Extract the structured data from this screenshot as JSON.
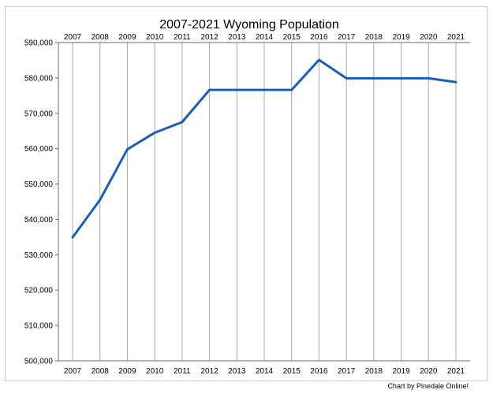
{
  "chart_data": {
    "type": "line",
    "title": "2007-2021 Wyoming Population",
    "credit": "Chart by Pinedale Online!",
    "xlabel": "",
    "ylabel": "",
    "x": [
      "2007",
      "2008",
      "2009",
      "2010",
      "2011",
      "2012",
      "2013",
      "2014",
      "2015",
      "2016",
      "2017",
      "2018",
      "2019",
      "2020",
      "2021"
    ],
    "series": [
      {
        "values": [
          534900,
          545500,
          559800,
          564500,
          567500,
          576600,
          576600,
          576600,
          576600,
          585100,
          579900,
          579900,
          579900,
          579900,
          578800
        ]
      }
    ],
    "ylim": [
      500000,
      590000
    ],
    "yticks": [
      500000,
      510000,
      520000,
      530000,
      540000,
      550000,
      560000,
      570000,
      580000,
      590000
    ],
    "ytick_labels": [
      "500,000",
      "510,000",
      "520,000",
      "530,000",
      "540,000",
      "550,000",
      "560,000",
      "570,000",
      "580,000",
      "590,000"
    ],
    "grid": "vertical",
    "x_tick_labels_top": true,
    "x_tick_labels_bottom": true,
    "colors": {
      "line": "#1a5fb4",
      "grid": "#a8a8a8",
      "axis": "#6e6e6e"
    }
  }
}
